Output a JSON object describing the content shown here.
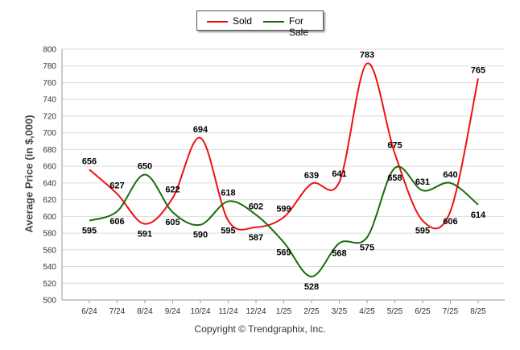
{
  "chart_data": {
    "type": "line",
    "title": "",
    "xlabel": "",
    "ylabel": "Average Price (in $,000)",
    "ylim": [
      500,
      800
    ],
    "yticks": [
      500,
      520,
      540,
      560,
      580,
      600,
      620,
      640,
      660,
      680,
      700,
      720,
      740,
      760,
      780,
      800
    ],
    "grid": true,
    "legend": "top-center",
    "categories": [
      "6/24",
      "7/24",
      "8/24",
      "9/24",
      "10/24",
      "11/24",
      "12/24",
      "1/25",
      "2/25",
      "3/25",
      "4/25",
      "5/25",
      "6/25",
      "7/25",
      "8/25"
    ],
    "series": [
      {
        "name": "Sold",
        "color": "#ee1111",
        "values": [
          656,
          627,
          591,
          622,
          694,
          595,
          587,
          599,
          639,
          641,
          783,
          675,
          595,
          606,
          765
        ]
      },
      {
        "name": "For Sale",
        "color": "#1a6b0c",
        "values": [
          595,
          606,
          650,
          605,
          590,
          618,
          602,
          569,
          528,
          568,
          575,
          658,
          631,
          640,
          614
        ]
      }
    ]
  },
  "footer": {
    "copyright": "Copyright © Trendgraphix, Inc."
  }
}
